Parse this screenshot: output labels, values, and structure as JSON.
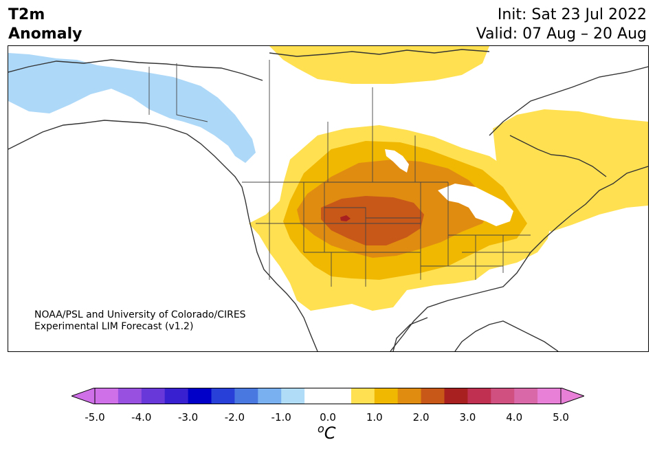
{
  "title": {
    "line1": "T2m",
    "line2": "Anomaly",
    "init": "Init: Sat 23 Jul 2022",
    "valid": "Valid: 07 Aug – 20 Aug"
  },
  "credit": {
    "line1": "NOAA/PSL and University of Colorado/CIRES",
    "line2": "Experimental LIM Forecast (v1.2)"
  },
  "colorbar": {
    "ticks": [
      "-5.0",
      "-4.0",
      "-3.0",
      "-2.0",
      "-1.0",
      "0.0",
      "1.0",
      "2.0",
      "3.0",
      "4.0",
      "5.0"
    ],
    "unit_base": "C",
    "unit_sup": "o",
    "colors": [
      "#d070e8",
      "#9850e0",
      "#6838d8",
      "#3820d0",
      "#0000c8",
      "#2840d8",
      "#4878e0",
      "#78b0f0",
      "#b0dcf8",
      "#ffffff",
      "#ffffff",
      "#ffe050",
      "#f0b800",
      "#e08c10",
      "#c85818",
      "#a82020",
      "#c03050",
      "#d05080",
      "#d868a8",
      "#e880d8"
    ],
    "over_color": "#e880d8",
    "under_color": "#d070e8"
  },
  "anomaly_colors": {
    "plus_0_5_to_1": "#ffe050",
    "plus_1_to_1_5": "#f0b800",
    "plus_1_5_to_2": "#e08c10",
    "plus_2_to_2_5": "#c85818",
    "plus_2_5_to_3": "#a82020",
    "minus_0_5_to_1": "#b0dcf8"
  }
}
